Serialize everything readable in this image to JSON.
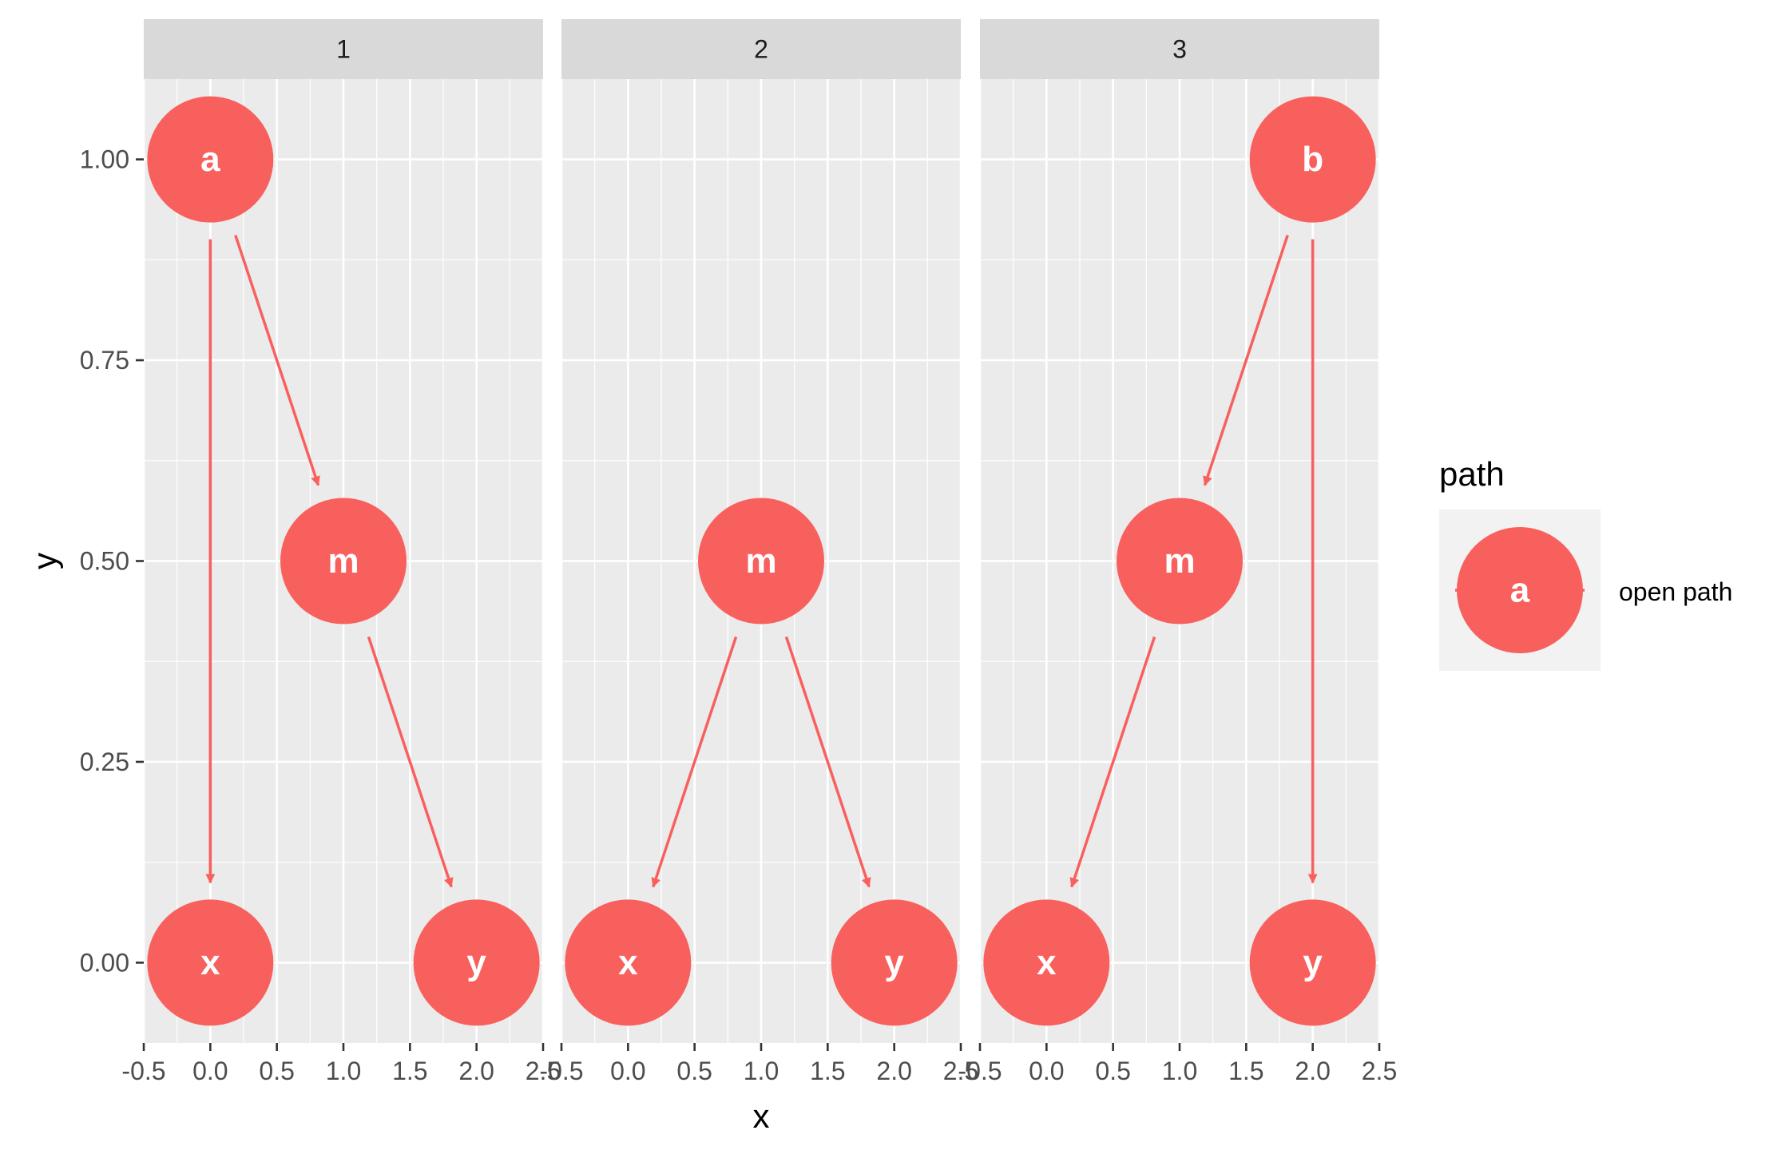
{
  "chart_data": {
    "type": "dag",
    "panels": [
      {
        "strip": "1",
        "nodes": [
          {
            "name": "a",
            "x": 0,
            "y": 1.0
          },
          {
            "name": "m",
            "x": 1,
            "y": 0.5
          },
          {
            "name": "x",
            "x": 0,
            "y": 0.0
          },
          {
            "name": "y",
            "x": 2,
            "y": 0.0
          }
        ],
        "edges": [
          {
            "from": "a",
            "to": "x"
          },
          {
            "from": "a",
            "to": "m"
          },
          {
            "from": "m",
            "to": "y"
          }
        ]
      },
      {
        "strip": "2",
        "nodes": [
          {
            "name": "m",
            "x": 1,
            "y": 0.5
          },
          {
            "name": "x",
            "x": 0,
            "y": 0.0
          },
          {
            "name": "y",
            "x": 2,
            "y": 0.0
          }
        ],
        "edges": [
          {
            "from": "m",
            "to": "x"
          },
          {
            "from": "m",
            "to": "y"
          }
        ]
      },
      {
        "strip": "3",
        "nodes": [
          {
            "name": "b",
            "x": 2,
            "y": 1.0
          },
          {
            "name": "m",
            "x": 1,
            "y": 0.5
          },
          {
            "name": "x",
            "x": 0,
            "y": 0.0
          },
          {
            "name": "y",
            "x": 2,
            "y": 0.0
          }
        ],
        "edges": [
          {
            "from": "b",
            "to": "m"
          },
          {
            "from": "b",
            "to": "y"
          },
          {
            "from": "m",
            "to": "x"
          }
        ]
      }
    ],
    "xlabel": "x",
    "ylabel": "y",
    "xlim": [
      -0.5,
      2.5
    ],
    "ylim": [
      -0.1,
      1.1
    ],
    "x_ticks": [
      -0.5,
      0.0,
      0.5,
      1.0,
      1.5,
      2.0,
      2.5
    ],
    "x_tick_labels": [
      "-0.5",
      "0.0",
      "0.5",
      "1.0",
      "1.5",
      "2.0",
      "2.5"
    ],
    "y_ticks": [
      0.0,
      0.25,
      0.5,
      0.75,
      1.0
    ],
    "y_tick_labels": [
      "0.00",
      "0.25",
      "0.50",
      "0.75",
      "1.00"
    ],
    "grid": true,
    "legend": {
      "title": "path",
      "key_label": "a",
      "entries": [
        "open path"
      ],
      "placement": "right"
    },
    "colors": {
      "node": "#F8605D",
      "edge": "#F8605D",
      "panel_bg": "#EBEBEB",
      "strip_bg": "#D9D9D9",
      "grid": "#FFFFFF",
      "legend_key_bg": "#F2F2F2"
    }
  }
}
